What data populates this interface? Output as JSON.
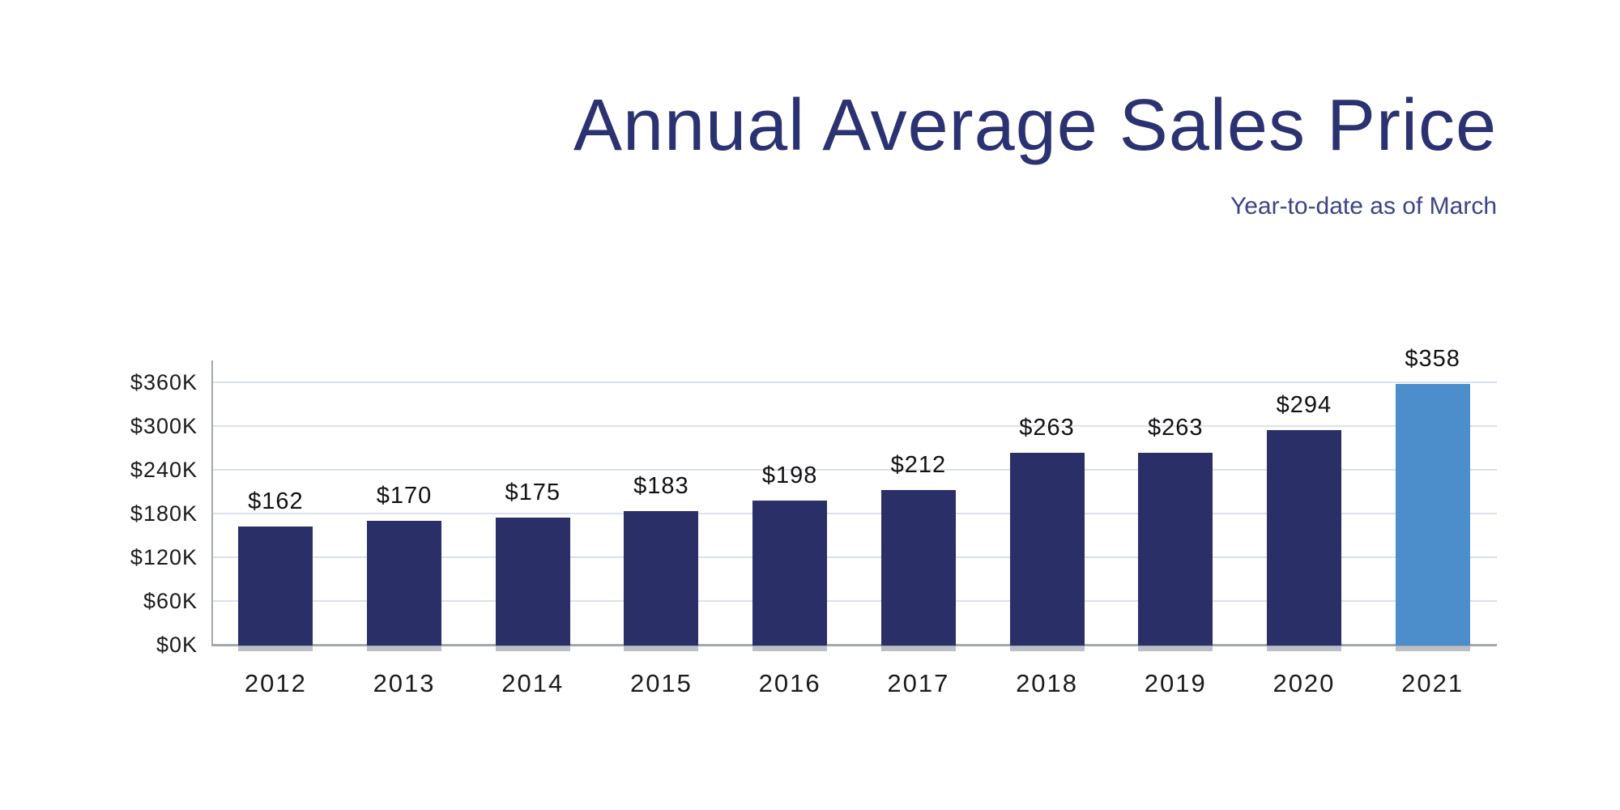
{
  "chart_data": {
    "type": "bar",
    "title": "Annual Average Sales Price",
    "subtitle": "Year-to-date as of March",
    "categories": [
      "2012",
      "2013",
      "2014",
      "2015",
      "2016",
      "2017",
      "2018",
      "2019",
      "2020",
      "2021"
    ],
    "values": [
      162,
      170,
      175,
      183,
      198,
      212,
      263,
      263,
      294,
      358
    ],
    "bar_labels": [
      "$162",
      "$170",
      "$175",
      "$183",
      "$198",
      "$212",
      "$263",
      "$263",
      "$294",
      "$358"
    ],
    "y_ticks": [
      {
        "value": 0,
        "label": "$0K"
      },
      {
        "value": 60,
        "label": "$60K"
      },
      {
        "value": 120,
        "label": "$120K"
      },
      {
        "value": 180,
        "label": "$180K"
      },
      {
        "value": 240,
        "label": "$240K"
      },
      {
        "value": 300,
        "label": "$300K"
      },
      {
        "value": 360,
        "label": "$360K"
      }
    ],
    "ylim": [
      0,
      390
    ],
    "xlabel": "",
    "ylabel": "",
    "grid": true,
    "legend": false,
    "highlight_index": 9,
    "colors": {
      "bar": "#2a3067",
      "highlight_bar": "#4c8ecb",
      "gridline": "#dbe1ed",
      "axis_line": "#a3a7ae",
      "title_text": "#2b3271",
      "subtitle_text": "#3c4485",
      "tick_text": "#1a1a1a"
    }
  }
}
